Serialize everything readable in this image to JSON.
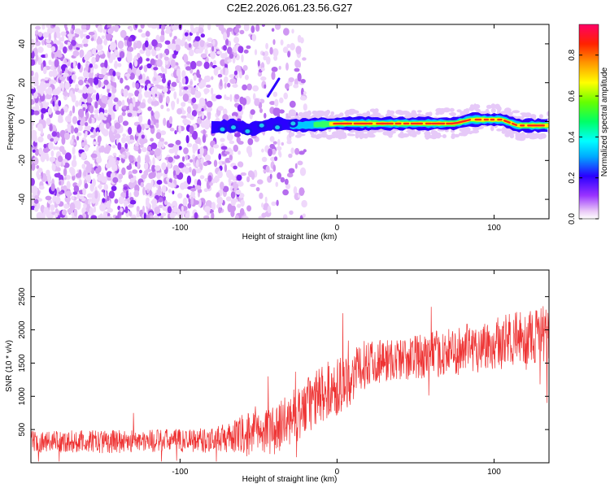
{
  "chart_data": [
    {
      "type": "heatmap",
      "title": "C2E2.2026.061.23.56.G27",
      "xlabel": "Height of straight line (km)",
      "ylabel": "Frequency (Hz)",
      "xlim": [
        -195,
        135
      ],
      "ylim": [
        -50,
        50
      ],
      "x_ticks": [
        -100,
        0,
        100
      ],
      "y_ticks": [
        -40,
        -20,
        0,
        20,
        40
      ],
      "colorbar": {
        "label": "Normalized spectral amplitude",
        "range": [
          0,
          0.95
        ],
        "ticks": [
          0.0,
          0.2,
          0.4,
          0.6,
          0.8
        ]
      },
      "ridge": {
        "description_points_x_km": [
          -80,
          -65,
          -55,
          -40,
          -25,
          0,
          20,
          40,
          60,
          75,
          85,
          95,
          105,
          115,
          135
        ],
        "frequency_hz": [
          -3,
          -2,
          -4,
          -1,
          -2,
          -1,
          -1,
          -1,
          -1,
          -1,
          1,
          1,
          1,
          -2,
          -2
        ]
      }
    },
    {
      "type": "line",
      "title": "",
      "xlabel": "Height of straight line (km)",
      "ylabel": "SNR (10 * v/v)",
      "xlim": [
        -195,
        135
      ],
      "ylim": [
        0,
        2900
      ],
      "x_ticks": [
        -100,
        0,
        100
      ],
      "y_ticks": [
        500,
        1000,
        1500,
        2000,
        2500
      ],
      "series": [
        {
          "name": "SNR",
          "color": "#ee3333",
          "envelope_x_km": [
            -195,
            -150,
            -100,
            -70,
            -60,
            -40,
            -20,
            -10,
            0,
            10,
            20,
            40,
            70,
            100,
            135
          ],
          "mean": [
            300,
            300,
            320,
            340,
            380,
            450,
            780,
            1000,
            1100,
            1250,
            1500,
            1520,
            1620,
            1750,
            1900
          ],
          "spread": [
            200,
            220,
            220,
            260,
            400,
            450,
            550,
            550,
            550,
            500,
            450,
            400,
            450,
            500,
            550
          ]
        }
      ]
    }
  ]
}
